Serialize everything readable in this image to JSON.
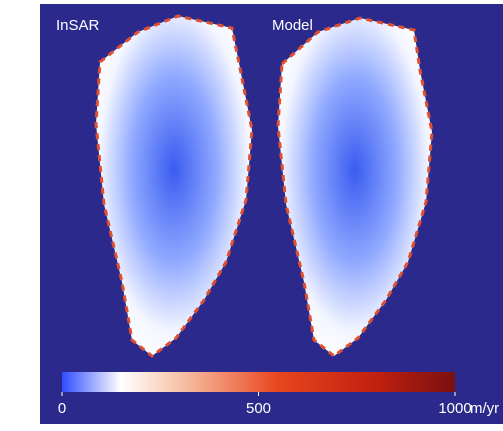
{
  "panels": [
    {
      "label": "InSAR"
    },
    {
      "label": "Model"
    }
  ],
  "colorbar": {
    "lim": [
      0,
      1000
    ],
    "ticks": [
      0,
      500,
      1000
    ],
    "unit": "m/yr"
  }
}
